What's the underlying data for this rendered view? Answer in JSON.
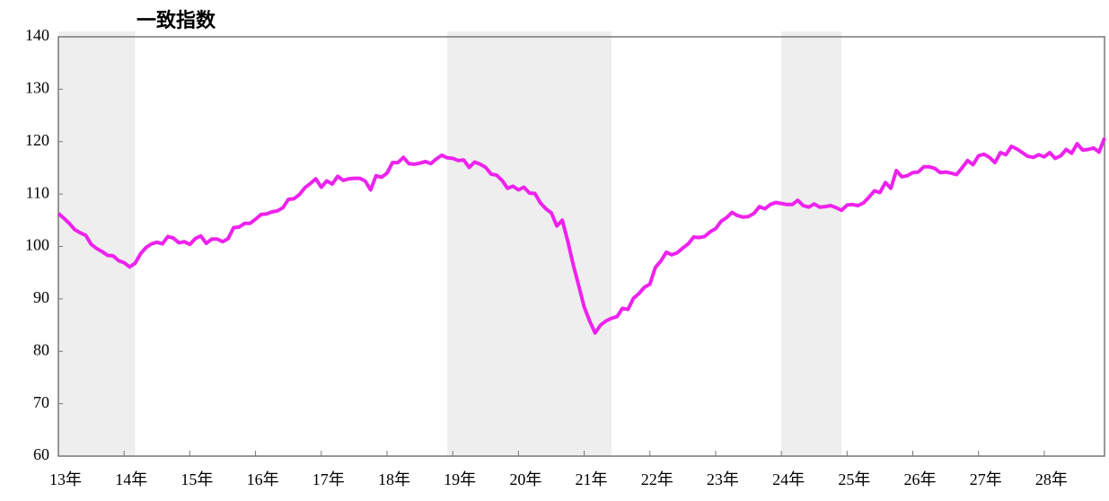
{
  "chart_data": {
    "type": "line",
    "title": "一致指数",
    "color": "#ee22ee",
    "values": [
      106.3,
      105.4,
      104.4,
      103.2,
      102.6,
      102.1,
      100.4,
      99.6,
      99.0,
      98.3,
      98.2,
      97.3,
      96.9,
      96.1,
      96.8,
      98.6,
      99.8,
      100.5,
      100.8,
      100.5,
      101.9,
      101.6,
      100.7,
      100.9,
      100.4,
      101.5,
      102.0,
      100.6,
      101.4,
      101.4,
      100.9,
      101.5,
      103.6,
      103.7,
      104.4,
      104.4,
      105.2,
      106.1,
      106.2,
      106.6,
      106.8,
      107.4,
      109.0,
      109.1,
      109.9,
      111.2,
      112.0,
      112.9,
      111.3,
      112.5,
      111.9,
      113.4,
      112.6,
      112.9,
      113.0,
      113.0,
      112.5,
      110.8,
      113.5,
      113.2,
      114.0,
      116.0,
      116.0,
      117.0,
      115.8,
      115.7,
      115.9,
      116.2,
      115.8,
      116.7,
      117.4,
      116.9,
      116.8,
      116.4,
      116.5,
      115.1,
      116.1,
      115.7,
      115.1,
      113.8,
      113.6,
      112.6,
      111.1,
      111.5,
      110.8,
      111.3,
      110.2,
      110.1,
      108.3,
      107.2,
      106.4,
      103.9,
      105.0,
      101.0,
      96.5,
      92.5,
      88.5,
      85.8,
      83.5,
      85.0,
      85.8,
      86.3,
      86.6,
      88.2,
      88.0,
      90.1,
      91.0,
      92.2,
      92.8,
      96.0,
      97.2,
      98.9,
      98.4,
      98.8,
      99.7,
      100.5,
      101.8,
      101.7,
      101.9,
      102.8,
      103.4,
      104.8,
      105.5,
      106.5,
      105.9,
      105.6,
      105.7,
      106.3,
      107.6,
      107.2,
      108.0,
      108.4,
      108.2,
      108.0,
      108.0,
      108.8,
      107.8,
      107.5,
      108.1,
      107.5,
      107.6,
      107.8,
      107.4,
      106.9,
      107.9,
      108.0,
      107.8,
      108.3,
      109.4,
      110.6,
      110.3,
      112.2,
      111.1,
      114.5,
      113.3,
      113.5,
      114.1,
      114.2,
      115.2,
      115.2,
      114.9,
      114.1,
      114.2,
      114.0,
      113.7,
      115.0,
      116.4,
      115.6,
      117.3,
      117.6,
      117.0,
      116.0,
      117.9,
      117.5,
      119.1,
      118.6,
      117.9,
      117.2,
      117.0,
      117.5,
      117.1,
      117.9,
      116.8,
      117.3,
      118.5,
      117.8,
      119.6,
      118.4,
      118.5,
      118.8,
      118.0,
      120.7
    ],
    "xlim": [
      0,
      191
    ],
    "xticks": [
      {
        "value": 0,
        "label": "13年"
      },
      {
        "value": 12,
        "label": "14年"
      },
      {
        "value": 24,
        "label": "15年"
      },
      {
        "value": 36,
        "label": "16年"
      },
      {
        "value": 48,
        "label": "17年"
      },
      {
        "value": 60,
        "label": "18年"
      },
      {
        "value": 72,
        "label": "19年"
      },
      {
        "value": 84,
        "label": "20年"
      },
      {
        "value": 96,
        "label": "21年"
      },
      {
        "value": 108,
        "label": "22年"
      },
      {
        "value": 120,
        "label": "23年"
      },
      {
        "value": 132,
        "label": "24年"
      },
      {
        "value": 144,
        "label": "25年"
      },
      {
        "value": 156,
        "label": "26年"
      },
      {
        "value": 168,
        "label": "27年"
      },
      {
        "value": 180,
        "label": "28年"
      }
    ],
    "ylim": [
      60,
      140
    ],
    "yticks": [
      60,
      70,
      80,
      90,
      100,
      110,
      120,
      130,
      140
    ],
    "shaded_periods": [
      [
        0,
        14
      ],
      [
        71,
        101
      ],
      [
        132,
        143
      ]
    ],
    "shade_color": "#eeeeee"
  }
}
